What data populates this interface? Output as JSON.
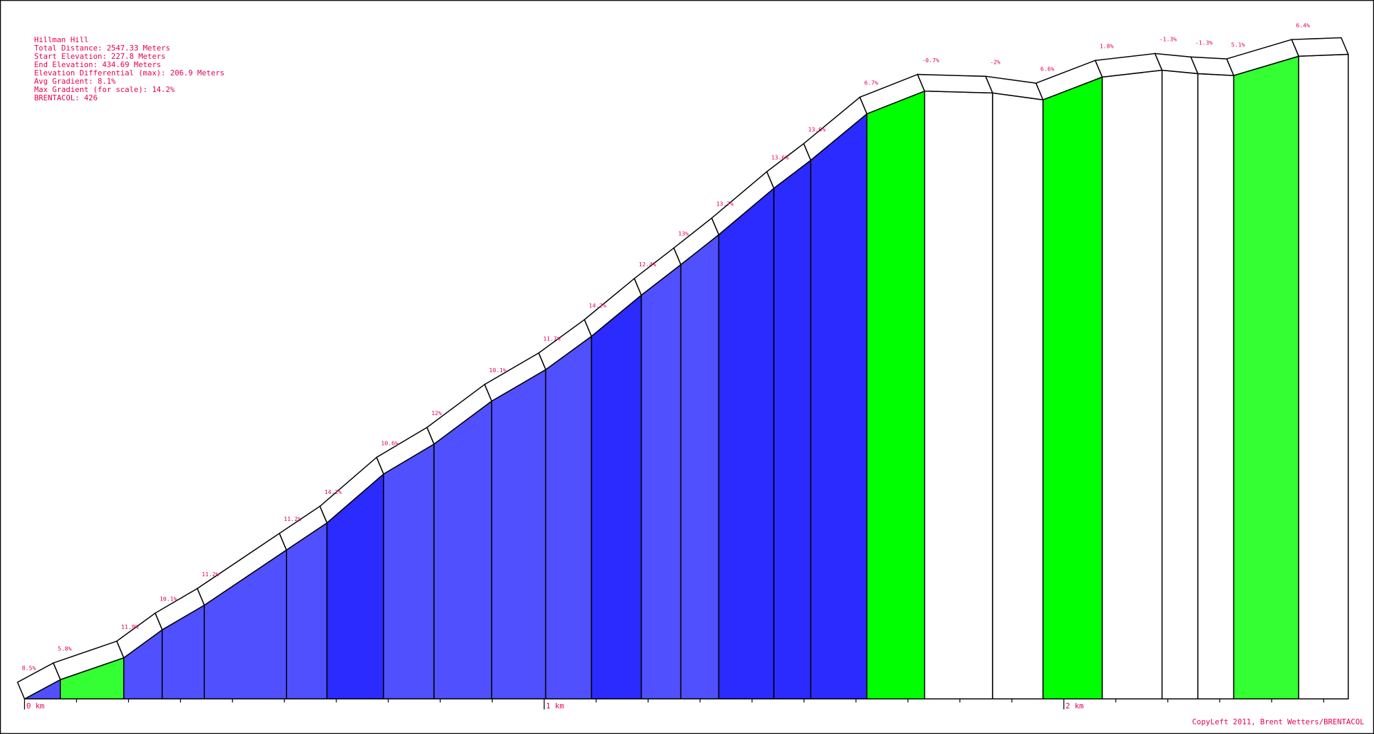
{
  "chart_data": {
    "type": "climb-profile",
    "title": "Hillman Hill",
    "info": [
      "Total Distance: 2547.33 Meters",
      "Start Elevation: 227.8 Meters",
      "End Elevation: 434.69 Meters",
      "Elevation Differential (max): 206.9 Meters",
      "Avg Gradient: 8.1%",
      "Max Gradient (for scale): 14.2%",
      "BRENTACOL: 426"
    ],
    "credit": "CopyLeft 2011, Brent Wetters/BRENTACOL",
    "distances": [
      0,
      69,
      191,
      265,
      346,
      504,
      582,
      691,
      788,
      899,
      1003,
      1091,
      1187,
      1263,
      1336,
      1442,
      1513,
      1621,
      1732,
      1863,
      1960,
      2074,
      2189,
      2258,
      2327,
      2452,
      2547.33
    ],
    "elevations": [
      227.8,
      234.0,
      241.0,
      250.0,
      257.9,
      275.6,
      284.3,
      300.0,
      309.6,
      323.4,
      333.5,
      344.2,
      357.4,
      367.2,
      376.8,
      391.7,
      400.7,
      415.6,
      422.9,
      422.3,
      420.1,
      427.4,
      429.6,
      428.5,
      427.9,
      434.1,
      434.69
    ],
    "gradients": [
      8.5,
      5.8,
      11.9,
      10.1,
      11.2,
      11.2,
      14.2,
      10.6,
      12,
      10.1,
      11.7,
      14.2,
      12.4,
      13,
      13.7,
      13.6,
      13.6,
      6.7,
      -0.7,
      -2,
      6.6,
      1.8,
      -1.3,
      -1.3,
      5.1,
      6.4
    ],
    "value_labels": [
      "8.5%",
      "5.8%",
      "11.9%",
      "10.1%",
      "11.2%",
      "11.2%",
      "14.2%",
      "10.6%",
      "12%",
      "10.1%",
      "11.7%",
      "14.2%",
      "12.4%",
      "13%",
      "13.7%",
      "13.6%",
      "13.6%",
      "6.7%",
      "-0.7%",
      "-2%",
      "6.6%",
      "1.8%",
      "-1.3%",
      "-1.3%",
      "5.1%",
      "6.4%"
    ],
    "colors": [
      "#5050ff",
      "#33ff33",
      "#5050ff",
      "#5050ff",
      "#5050ff",
      "#5050ff",
      "#2b2bff",
      "#5050ff",
      "#5050ff",
      "#5050ff",
      "#5050ff",
      "#2b2bff",
      "#5050ff",
      "#5050ff",
      "#2b2bff",
      "#2b2bff",
      "#2b2bff",
      "#00ff00",
      "#ffffff",
      "#ffffff",
      "#00ff00",
      "#ffffff",
      "#ffffff",
      "#ffffff",
      "#33ff33",
      "#ffffff"
    ],
    "xlim": [
      0,
      2547.33
    ],
    "ylim": [
      227.8,
      434.69
    ],
    "xticks": [
      {
        "value": 0,
        "label": "0 km"
      },
      {
        "value": 1000,
        "label": "1 km"
      },
      {
        "value": 2000,
        "label": "2 km"
      }
    ],
    "xminor_ticks": [
      100,
      200,
      300,
      400,
      500,
      600,
      700,
      800,
      900,
      1100,
      1200,
      1300,
      1400,
      1500,
      1600,
      1700,
      1800,
      1900,
      2100,
      2200,
      2300,
      2400,
      2500
    ]
  }
}
